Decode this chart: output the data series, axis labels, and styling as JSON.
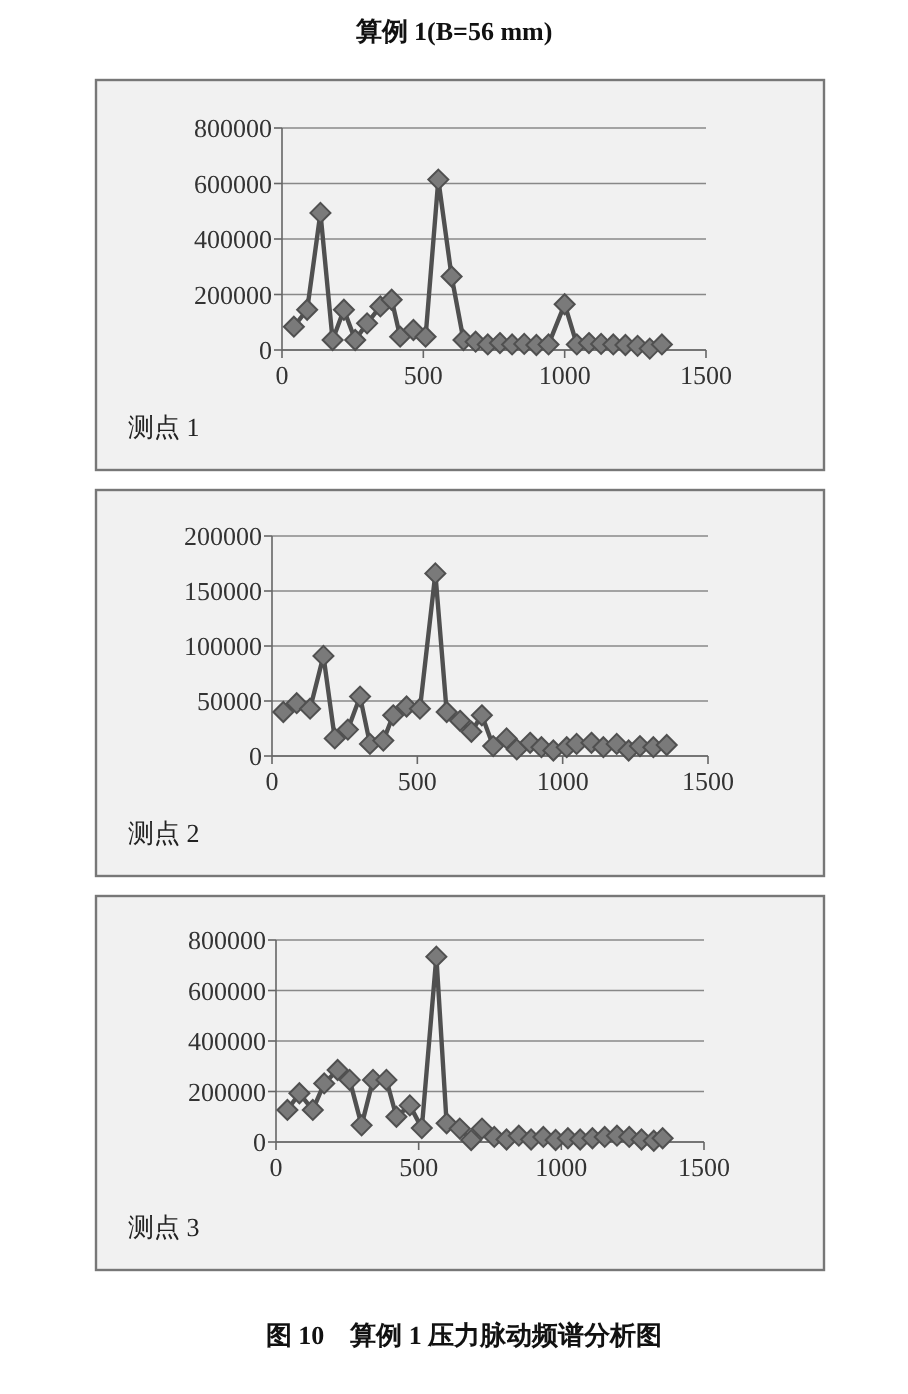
{
  "chart_data": [
    {
      "type": "line",
      "title": "算例 1(B=56 mm)",
      "x": [
        42,
        89,
        136,
        179,
        219,
        259,
        301,
        348,
        388,
        418,
        465,
        508,
        553,
        600,
        642,
        685,
        728,
        771,
        814,
        857,
        900,
        943,
        1000,
        1043,
        1086,
        1129,
        1172,
        1215,
        1258,
        1301,
        1344
      ],
      "values": [
        84000,
        145000,
        494000,
        36000,
        145000,
        36000,
        96000,
        157000,
        181000,
        48000,
        72000,
        48000,
        614000,
        265000,
        36000,
        30000,
        20000,
        25000,
        20000,
        22000,
        18000,
        20000,
        165000,
        20000,
        25000,
        22000,
        20000,
        18000,
        15000,
        5000,
        20000
      ],
      "color": "#505050",
      "marker": "diamond",
      "grid": "y",
      "xlim": [
        0,
        1500
      ],
      "xticks": [
        0,
        500,
        1000,
        1500
      ],
      "ylim": [
        0,
        800000
      ],
      "yticks": [
        0,
        200000,
        400000,
        600000,
        800000
      ],
      "annotations": [
        "测点 1"
      ]
    },
    {
      "type": "line",
      "x": [
        39,
        85,
        131,
        177,
        216,
        261,
        303,
        337,
        383,
        417,
        463,
        509,
        562,
        601,
        647,
        686,
        722,
        761,
        807,
        842,
        888,
        927,
        968,
        1014,
        1048,
        1099,
        1140,
        1186,
        1227,
        1266,
        1312,
        1358
      ],
      "values": [
        40000,
        48000,
        43000,
        91000,
        16000,
        24000,
        54000,
        11000,
        14000,
        37000,
        45000,
        43000,
        166000,
        40000,
        32000,
        22000,
        37000,
        9000,
        16000,
        6000,
        12000,
        8000,
        5000,
        8000,
        11000,
        12000,
        8000,
        11000,
        5000,
        9000,
        8000,
        10000
      ],
      "color": "#505050",
      "marker": "diamond",
      "grid": "y",
      "xlim": [
        0,
        1500
      ],
      "xticks": [
        0,
        500,
        1000,
        1500
      ],
      "ylim": [
        0,
        200000
      ],
      "yticks": [
        0,
        50000,
        100000,
        150000,
        200000
      ],
      "annotations": [
        "测点 2"
      ]
    },
    {
      "type": "line",
      "x": [
        40,
        82,
        129,
        169,
        216,
        258,
        300,
        340,
        387,
        422,
        469,
        511,
        562,
        598,
        644,
        684,
        722,
        765,
        808,
        851,
        894,
        937,
        980,
        1023,
        1066,
        1109,
        1152,
        1195,
        1238,
        1281,
        1324,
        1355
      ],
      "values": [
        127000,
        193000,
        127000,
        232000,
        285000,
        246000,
        66000,
        246000,
        246000,
        100000,
        145000,
        55000,
        734000,
        74000,
        53000,
        8000,
        53000,
        20000,
        10000,
        25000,
        10000,
        20000,
        8000,
        15000,
        10000,
        15000,
        20000,
        25000,
        20000,
        10000,
        5000,
        15000
      ],
      "color": "#505050",
      "marker": "diamond",
      "grid": "y",
      "xlim": [
        0,
        1500
      ],
      "xticks": [
        0,
        500,
        1000,
        1500
      ],
      "ylim": [
        0,
        800000
      ],
      "yticks": [
        0,
        200000,
        400000,
        600000,
        800000
      ],
      "annotations": [
        "测点 3",
        "图 10　算例 1 压力脉动频谱分析图"
      ]
    }
  ]
}
